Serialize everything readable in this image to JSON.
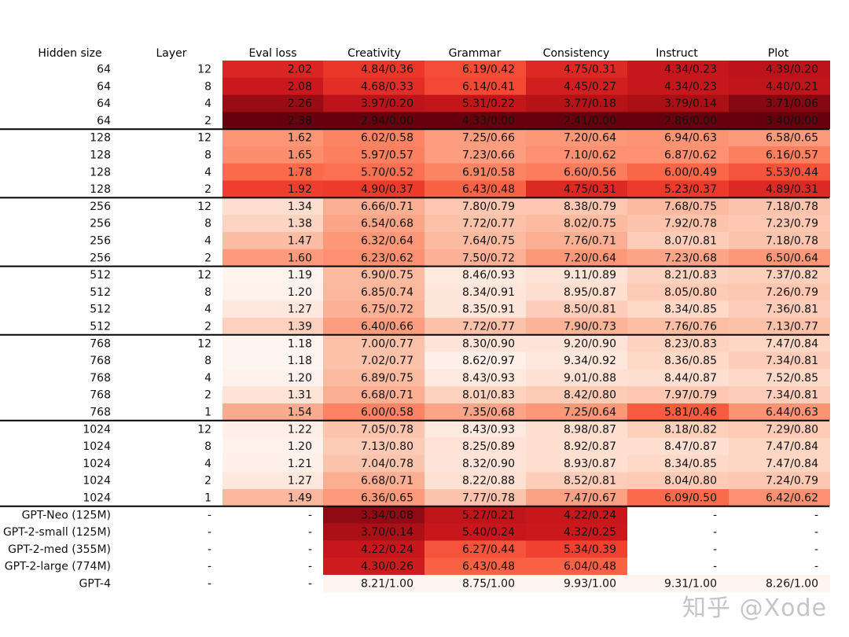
{
  "chart_data": {
    "type": "table",
    "title": "",
    "columns": [
      "Hidden size",
      "Layer",
      "Eval loss",
      "Creativity",
      "Grammar",
      "Consistency",
      "Instruct",
      "Plot"
    ],
    "colormap": "reds",
    "rows": [
      {
        "hidden": "64",
        "layer": "12",
        "loss": "2.02",
        "creativity": "4.84/0.36",
        "grammar": "6.19/0.42",
        "consistency": "4.75/0.31",
        "instruct": "4.34/0.23",
        "plot": "4.39/0.20"
      },
      {
        "hidden": "64",
        "layer": "8",
        "loss": "2.08",
        "creativity": "4.68/0.33",
        "grammar": "6.14/0.41",
        "consistency": "4.45/0.27",
        "instruct": "4.34/0.23",
        "plot": "4.40/0.21"
      },
      {
        "hidden": "64",
        "layer": "4",
        "loss": "2.26",
        "creativity": "3.97/0.20",
        "grammar": "5.31/0.22",
        "consistency": "3.77/0.18",
        "instruct": "3.79/0.14",
        "plot": "3.71/0.06"
      },
      {
        "hidden": "64",
        "layer": "2",
        "loss": "2.38",
        "creativity": "2.94/0.00",
        "grammar": "4.33/0.00",
        "consistency": "2.41/0.00",
        "instruct": "2.86/0.00",
        "plot": "3.40/0.00"
      },
      {
        "hidden": "128",
        "layer": "12",
        "loss": "1.62",
        "creativity": "6.02/0.58",
        "grammar": "7.25/0.66",
        "consistency": "7.20/0.64",
        "instruct": "6.94/0.63",
        "plot": "6.58/0.65"
      },
      {
        "hidden": "128",
        "layer": "8",
        "loss": "1.65",
        "creativity": "5.97/0.57",
        "grammar": "7.23/0.66",
        "consistency": "7.10/0.62",
        "instruct": "6.87/0.62",
        "plot": "6.16/0.57"
      },
      {
        "hidden": "128",
        "layer": "4",
        "loss": "1.78",
        "creativity": "5.70/0.52",
        "grammar": "6.91/0.58",
        "consistency": "6.60/0.56",
        "instruct": "6.00/0.49",
        "plot": "5.53/0.44"
      },
      {
        "hidden": "128",
        "layer": "2",
        "loss": "1.92",
        "creativity": "4.90/0.37",
        "grammar": "6.43/0.48",
        "consistency": "4.75/0.31",
        "instruct": "5.23/0.37",
        "plot": "4.89/0.31"
      },
      {
        "hidden": "256",
        "layer": "12",
        "loss": "1.34",
        "creativity": "6.66/0.71",
        "grammar": "7.80/0.79",
        "consistency": "8.38/0.79",
        "instruct": "7.68/0.75",
        "plot": "7.18/0.78"
      },
      {
        "hidden": "256",
        "layer": "8",
        "loss": "1.38",
        "creativity": "6.54/0.68",
        "grammar": "7.72/0.77",
        "consistency": "8.02/0.75",
        "instruct": "7.92/0.78",
        "plot": "7.23/0.79"
      },
      {
        "hidden": "256",
        "layer": "4",
        "loss": "1.47",
        "creativity": "6.32/0.64",
        "grammar": "7.64/0.75",
        "consistency": "7.76/0.71",
        "instruct": "8.07/0.81",
        "plot": "7.18/0.78"
      },
      {
        "hidden": "256",
        "layer": "2",
        "loss": "1.60",
        "creativity": "6.23/0.62",
        "grammar": "7.50/0.72",
        "consistency": "7.20/0.64",
        "instruct": "7.23/0.68",
        "plot": "6.50/0.64"
      },
      {
        "hidden": "512",
        "layer": "12",
        "loss": "1.19",
        "creativity": "6.90/0.75",
        "grammar": "8.46/0.93",
        "consistency": "9.11/0.89",
        "instruct": "8.21/0.83",
        "plot": "7.37/0.82"
      },
      {
        "hidden": "512",
        "layer": "8",
        "loss": "1.20",
        "creativity": "6.85/0.74",
        "grammar": "8.34/0.91",
        "consistency": "8.95/0.87",
        "instruct": "8.05/0.80",
        "plot": "7.26/0.79"
      },
      {
        "hidden": "512",
        "layer": "4",
        "loss": "1.27",
        "creativity": "6.75/0.72",
        "grammar": "8.35/0.91",
        "consistency": "8.50/0.81",
        "instruct": "8.34/0.85",
        "plot": "7.36/0.81"
      },
      {
        "hidden": "512",
        "layer": "2",
        "loss": "1.39",
        "creativity": "6.40/0.66",
        "grammar": "7.72/0.77",
        "consistency": "7.90/0.73",
        "instruct": "7.76/0.76",
        "plot": "7.13/0.77"
      },
      {
        "hidden": "768",
        "layer": "12",
        "loss": "1.18",
        "creativity": "7.00/0.77",
        "grammar": "8.30/0.90",
        "consistency": "9.20/0.90",
        "instruct": "8.23/0.83",
        "plot": "7.47/0.84"
      },
      {
        "hidden": "768",
        "layer": "8",
        "loss": "1.18",
        "creativity": "7.02/0.77",
        "grammar": "8.62/0.97",
        "consistency": "9.34/0.92",
        "instruct": "8.36/0.85",
        "plot": "7.34/0.81"
      },
      {
        "hidden": "768",
        "layer": "4",
        "loss": "1.20",
        "creativity": "6.89/0.75",
        "grammar": "8.43/0.93",
        "consistency": "9.01/0.88",
        "instruct": "8.44/0.87",
        "plot": "7.52/0.85"
      },
      {
        "hidden": "768",
        "layer": "2",
        "loss": "1.31",
        "creativity": "6.68/0.71",
        "grammar": "8.01/0.83",
        "consistency": "8.42/0.80",
        "instruct": "7.97/0.79",
        "plot": "7.34/0.81"
      },
      {
        "hidden": "768",
        "layer": "1",
        "loss": "1.54",
        "creativity": "6.00/0.58",
        "grammar": "7.35/0.68",
        "consistency": "7.25/0.64",
        "instruct": "5.81/0.46",
        "plot": "6.44/0.63"
      },
      {
        "hidden": "1024",
        "layer": "12",
        "loss": "1.22",
        "creativity": "7.05/0.78",
        "grammar": "8.43/0.93",
        "consistency": "8.98/0.87",
        "instruct": "8.18/0.82",
        "plot": "7.29/0.80"
      },
      {
        "hidden": "1024",
        "layer": "8",
        "loss": "1.20",
        "creativity": "7.13/0.80",
        "grammar": "8.25/0.89",
        "consistency": "8.92/0.87",
        "instruct": "8.47/0.87",
        "plot": "7.47/0.84"
      },
      {
        "hidden": "1024",
        "layer": "4",
        "loss": "1.21",
        "creativity": "7.04/0.78",
        "grammar": "8.32/0.90",
        "consistency": "8.93/0.87",
        "instruct": "8.34/0.85",
        "plot": "7.47/0.84"
      },
      {
        "hidden": "1024",
        "layer": "2",
        "loss": "1.27",
        "creativity": "6.68/0.71",
        "grammar": "8.22/0.88",
        "consistency": "8.52/0.81",
        "instruct": "8.04/0.80",
        "plot": "7.24/0.79"
      },
      {
        "hidden": "1024",
        "layer": "1",
        "loss": "1.49",
        "creativity": "6.36/0.65",
        "grammar": "7.77/0.78",
        "consistency": "7.47/0.67",
        "instruct": "6.09/0.50",
        "plot": "6.42/0.62"
      },
      {
        "hidden": "GPT-Neo (125M)",
        "layer": "-",
        "loss": "-",
        "creativity": "3.34/0.08",
        "grammar": "5.27/0.21",
        "consistency": "4.22/0.24",
        "instruct": "-",
        "plot": "-"
      },
      {
        "hidden": "GPT-2-small (125M)",
        "layer": "-",
        "loss": "-",
        "creativity": "3.70/0.14",
        "grammar": "5.40/0.24",
        "consistency": "4.32/0.25",
        "instruct": "-",
        "plot": "-"
      },
      {
        "hidden": "GPT-2-med (355M)",
        "layer": "-",
        "loss": "-",
        "creativity": "4.22/0.24",
        "grammar": "6.27/0.44",
        "consistency": "5.34/0.39",
        "instruct": "-",
        "plot": "-"
      },
      {
        "hidden": "GPT-2-large (774M)",
        "layer": "-",
        "loss": "-",
        "creativity": "4.30/0.26",
        "grammar": "6.43/0.48",
        "consistency": "6.04/0.48",
        "instruct": "-",
        "plot": "-"
      },
      {
        "hidden": "GPT-4",
        "layer": "-",
        "loss": "-",
        "creativity": "8.21/1.00",
        "grammar": "8.75/1.00",
        "consistency": "9.93/1.00",
        "instruct": "9.31/1.00",
        "plot": "8.26/1.00"
      }
    ],
    "group_separators_after_rows": [
      3,
      7,
      11,
      15,
      20,
      25
    ],
    "eval_loss_range": [
      1.18,
      2.38
    ]
  },
  "watermark": "知乎 @Xode"
}
